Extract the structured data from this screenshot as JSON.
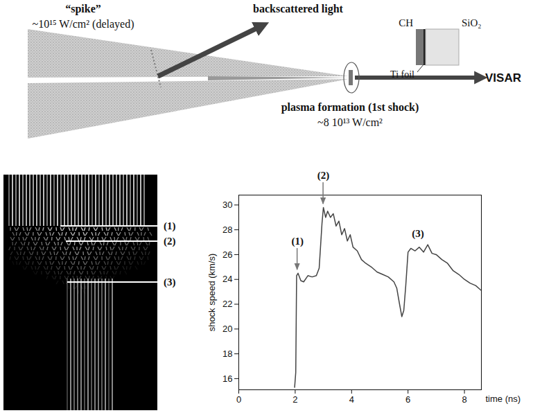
{
  "diagram": {
    "spike_label": "“spike”",
    "spike_intensity": "~10¹⁵ W/cm² (delayed)",
    "backscattered": "backscattered light",
    "target_layers": [
      "CH",
      "SiO₂"
    ],
    "foil": "Ti foil",
    "diagnostic": "VISAR",
    "plasma_label": "plasma formation (1st shock)",
    "plasma_intensity": "~8 10¹³ W/cm²"
  },
  "streak_image": {
    "markers": [
      "(1)",
      "(2)",
      "(3)"
    ]
  },
  "chart_data": {
    "type": "line",
    "x_label": "time (ns)",
    "y_label": "shock speed (km/s)",
    "color": "#444444",
    "x": [
      1.98,
      2.02,
      2.05,
      2.1,
      2.2,
      2.3,
      2.45,
      2.6,
      2.75,
      2.85,
      2.95,
      3.0,
      3.08,
      3.15,
      3.25,
      3.35,
      3.45,
      3.55,
      3.65,
      3.75,
      3.85,
      3.95,
      4.05,
      4.2,
      4.35,
      4.5,
      4.7,
      4.9,
      5.1,
      5.3,
      5.5,
      5.6,
      5.7,
      5.78,
      5.85,
      5.92,
      6.0,
      6.1,
      6.25,
      6.4,
      6.55,
      6.7,
      6.85,
      7.0,
      7.2,
      7.4,
      7.6,
      7.8,
      8.0,
      8.2,
      8.4,
      8.6
    ],
    "values": [
      15.3,
      16.5,
      24.3,
      24.5,
      23.9,
      23.8,
      24.3,
      24.2,
      24.3,
      24.9,
      28.5,
      29.8,
      29.0,
      29.5,
      29.0,
      29.3,
      28.3,
      28.7,
      27.6,
      28.1,
      27.1,
      27.6,
      26.6,
      26.3,
      25.6,
      25.3,
      25.0,
      24.6,
      24.4,
      24.2,
      23.8,
      23.3,
      22.0,
      21.0,
      21.5,
      23.5,
      26.2,
      26.5,
      26.3,
      26.6,
      26.2,
      26.8,
      26.1,
      26.0,
      25.6,
      25.3,
      24.7,
      24.4,
      24.0,
      23.7,
      23.5,
      23.1
    ],
    "xlim": [
      0,
      8.6
    ],
    "ylim": [
      15.1,
      30.8
    ],
    "xticks": [
      0,
      2,
      4,
      6,
      8
    ],
    "yticks": [
      16,
      18,
      20,
      22,
      24,
      26,
      28,
      30
    ],
    "grid": false,
    "annotations": [
      {
        "text": "(1)",
        "x": 2.08,
        "y": 24.6,
        "arrow": true
      },
      {
        "text": "(2)",
        "x": 3.0,
        "y": 29.9,
        "arrow": true
      },
      {
        "text": "(3)",
        "x": 6.35,
        "y": 26.8,
        "arrow": false
      }
    ]
  }
}
